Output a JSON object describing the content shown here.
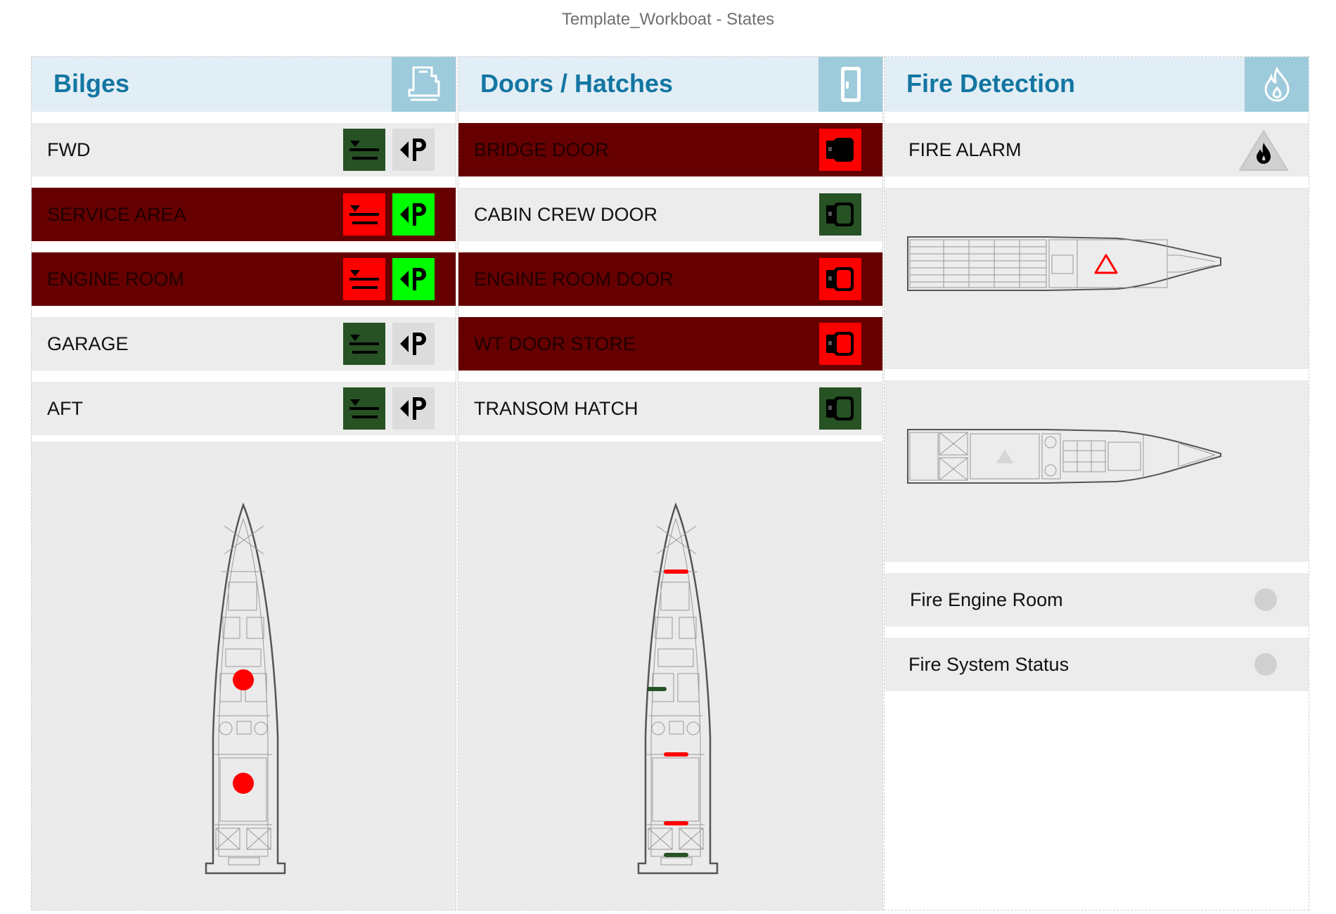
{
  "window": {
    "title": "Template_Workboat - States"
  },
  "bilges": {
    "title": "Bilges",
    "header_icon": "bilge-pump-icon",
    "rows": [
      {
        "label": "FWD",
        "alarm": false
      },
      {
        "label": "SERVICE AREA",
        "alarm": true
      },
      {
        "label": "ENGINE ROOM",
        "alarm": true
      },
      {
        "label": "GARAGE",
        "alarm": false
      },
      {
        "label": "AFT",
        "alarm": false
      }
    ]
  },
  "doors": {
    "title": "Doors / Hatches",
    "header_icon": "door-icon",
    "rows": [
      {
        "label": "BRIDGE DOOR",
        "alarm": true
      },
      {
        "label": "CABIN CREW DOOR",
        "alarm": false
      },
      {
        "label": "ENGINE ROOM DOOR",
        "alarm": true
      },
      {
        "label": "WT DOOR STORE",
        "alarm": true
      },
      {
        "label": "TRANSOM HATCH",
        "alarm": false
      }
    ]
  },
  "fire": {
    "title": "Fire Detection",
    "header_icon": "flame-icon",
    "fire_alarm_label": "FIRE ALARM",
    "status_rows": [
      {
        "label": "Fire Engine Room"
      },
      {
        "label": "Fire System Status"
      }
    ]
  },
  "colors": {
    "alarm_bg": "#660000",
    "alarm_red": "#ff0000",
    "ok_dark_green": "#275224",
    "active_green": "#00ff00",
    "accent_blue": "#1376a2",
    "header_bg": "#e2eef5",
    "header_icon_bg": "#9ecbdb"
  }
}
